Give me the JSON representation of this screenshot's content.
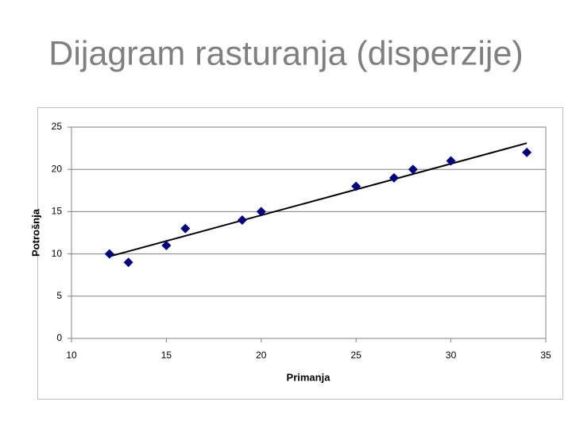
{
  "chart_data": {
    "type": "scatter",
    "title": "Dijagram rasturanja (disperzije)",
    "x_label": "Primanja",
    "y_label": "Potrošnja",
    "x": [
      12,
      13,
      15,
      16,
      19,
      20,
      25,
      27,
      28,
      30,
      34
    ],
    "values": [
      10,
      9,
      11,
      13,
      14,
      15,
      18,
      19,
      20,
      21,
      22
    ],
    "color": "#000080",
    "trendline": {
      "x": [
        12,
        34
      ],
      "values": [
        9.7,
        23.1
      ],
      "color": "#000000"
    },
    "xlim": [
      10,
      35
    ],
    "xticks": [
      10,
      15,
      20,
      25,
      30,
      35
    ],
    "ylim": [
      0,
      25
    ],
    "yticks": [
      0,
      5,
      10,
      15,
      20,
      25
    ],
    "grid": true
  }
}
